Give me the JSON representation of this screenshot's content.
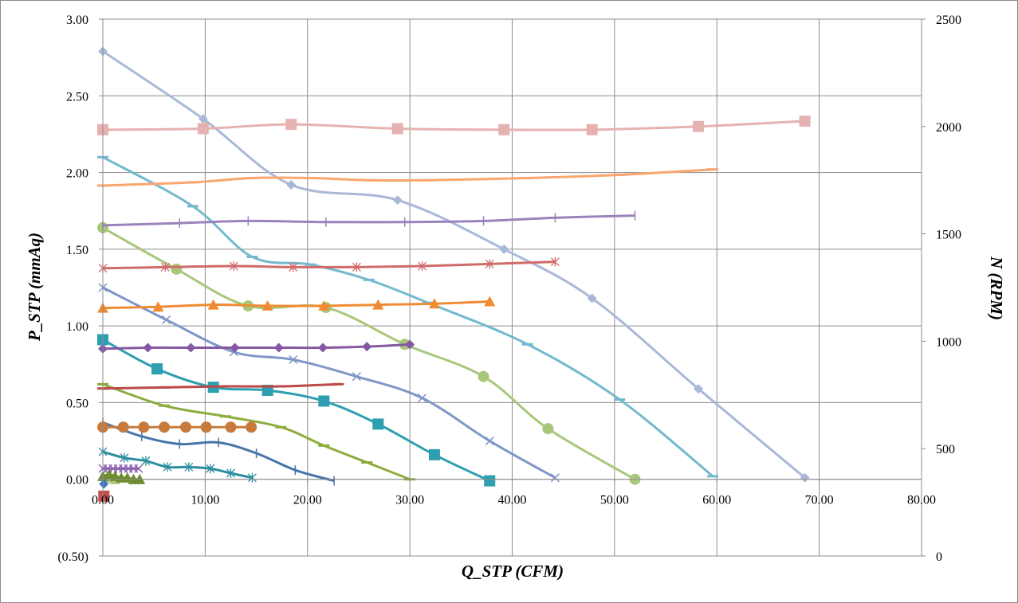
{
  "chart_data": {
    "type": "line",
    "xlabel": "Q_STP (CFM)",
    "ylabel": "P_STP (mmAq)",
    "y2label": "N (RPM)",
    "xlim": [
      0,
      80
    ],
    "ylim": [
      -0.5,
      3.0
    ],
    "y2lim": [
      0,
      2500
    ],
    "grid": true,
    "x_ticks": [
      "0.00",
      "10.00",
      "20.00",
      "30.00",
      "40.00",
      "50.00",
      "60.00",
      "70.00",
      "80.00"
    ],
    "x_tick_values": [
      0,
      10,
      20,
      30,
      40,
      50,
      60,
      70,
      80
    ],
    "y_ticks": [
      "(0.50)",
      "0.00",
      "0.50",
      "1.00",
      "1.50",
      "2.00",
      "2.50",
      "3.00"
    ],
    "y_tick_values": [
      -0.5,
      0,
      0.5,
      1.0,
      1.5,
      2.0,
      2.5,
      3.0
    ],
    "y2_ticks": [
      "0",
      "500",
      "1000",
      "1500",
      "2000",
      "2500"
    ],
    "y2_tick_values": [
      0,
      500,
      1000,
      1500,
      2000,
      2500
    ],
    "negative_tick_color": "#ff0000",
    "series": [
      {
        "axis": "y",
        "color": "#aab8d8",
        "marker": "diamond",
        "x": [
          0,
          9.8,
          18.4,
          28.8,
          39.2,
          47.8,
          58.2,
          68.6
        ],
        "y": [
          2.79,
          2.35,
          1.92,
          1.82,
          1.5,
          1.18,
          0.59,
          0.01
        ]
      },
      {
        "axis": "y",
        "color": "#74b9cf",
        "marker": "dash",
        "x": [
          0,
          8.8,
          14.6,
          20.3,
          26.0,
          31.8,
          41.5,
          50.5,
          59.6
        ],
        "y": [
          2.1,
          1.78,
          1.45,
          1.4,
          1.3,
          1.15,
          0.88,
          0.52,
          0.02
        ]
      },
      {
        "axis": "y",
        "color": "#a8c77a",
        "marker": "circle",
        "x": [
          0,
          7.2,
          14.2,
          21.8,
          29.5,
          37.2,
          43.5,
          52.0
        ],
        "y": [
          1.64,
          1.37,
          1.13,
          1.12,
          0.88,
          0.67,
          0.33,
          0.0
        ]
      },
      {
        "axis": "y",
        "color": "#7f96c7",
        "marker": "x",
        "x": [
          0,
          6.2,
          12.8,
          18.6,
          24.8,
          31.2,
          37.8,
          44.2
        ],
        "y": [
          1.25,
          1.04,
          0.83,
          0.78,
          0.67,
          0.53,
          0.25,
          0.01
        ]
      },
      {
        "axis": "y",
        "color": "#2e9fb0",
        "marker": "square",
        "x": [
          0,
          5.3,
          10.8,
          16.1,
          21.6,
          26.9,
          32.4,
          37.8
        ],
        "y": [
          0.91,
          0.72,
          0.6,
          0.58,
          0.51,
          0.36,
          0.16,
          -0.01
        ]
      },
      {
        "axis": "y",
        "color": "#8cac3e",
        "marker": "dash",
        "x": [
          0,
          6.0,
          12.0,
          17.4,
          21.6,
          25.8,
          30.0
        ],
        "y": [
          0.62,
          0.48,
          0.41,
          0.34,
          0.22,
          0.11,
          0.0
        ]
      },
      {
        "axis": "y",
        "color": "#4775aa",
        "marker": "plus",
        "x": [
          0,
          3.8,
          7.5,
          11.3,
          15.0,
          18.8,
          22.6
        ],
        "y": [
          0.37,
          0.28,
          0.23,
          0.24,
          0.17,
          0.06,
          -0.01
        ]
      },
      {
        "axis": "y",
        "color": "#2c8d9f",
        "marker": "star",
        "x": [
          0,
          2.1,
          4.2,
          6.3,
          8.4,
          10.5,
          12.5,
          14.6
        ],
        "y": [
          0.18,
          0.14,
          0.12,
          0.08,
          0.08,
          0.07,
          0.04,
          0.01
        ]
      },
      {
        "axis": "y",
        "color": "#8b62b0",
        "marker": "x",
        "x": [
          0,
          0.5,
          1.0,
          1.5,
          2.0,
          2.5,
          3.0,
          3.5
        ],
        "y": [
          0.07,
          0.07,
          0.07,
          0.07,
          0.07,
          0.07,
          0.07,
          0.07
        ]
      },
      {
        "axis": "y",
        "color": "#aac57e",
        "marker": "triangle",
        "x": [
          0.5,
          1.2
        ],
        "y": [
          0.01,
          0.0
        ]
      },
      {
        "axis": "y",
        "color": "#6f8c2e",
        "marker": "triangle",
        "x": [
          0,
          0.6,
          1.2,
          1.8,
          2.4,
          3.0,
          3.6
        ],
        "y": [
          0.02,
          0.03,
          0.02,
          0.01,
          0.01,
          0.0,
          0.0
        ]
      },
      {
        "axis": "y",
        "color": "#4472c4",
        "marker": "diamond",
        "x": [
          0.1
        ],
        "y": [
          -0.03
        ]
      },
      {
        "axis": "y",
        "color": "#c0504d",
        "marker": "square",
        "x": [
          0.1
        ],
        "y": [
          -0.11
        ]
      },
      {
        "axis": "y2",
        "color": "#e6b2b1",
        "marker": "square",
        "x": [
          0,
          9.8,
          18.4,
          28.8,
          39.2,
          47.8,
          58.2,
          68.6
        ],
        "y": [
          1985,
          1990,
          2010,
          1990,
          1985,
          1985,
          2000,
          2025
        ]
      },
      {
        "axis": "y2",
        "color": "#f9a66f",
        "marker": "dash",
        "x": [
          0,
          8.8,
          14.6,
          20.3,
          26.0,
          31.8,
          41.5,
          50.5,
          59.6
        ],
        "y": [
          1725,
          1740,
          1760,
          1760,
          1750,
          1750,
          1760,
          1775,
          1800
        ]
      },
      {
        "axis": "y2",
        "color": "#9b83bb",
        "marker": "plus",
        "x": [
          0,
          7.5,
          14.2,
          21.8,
          29.5,
          37.2,
          44.2,
          52.0
        ],
        "y": [
          1540,
          1550,
          1560,
          1555,
          1555,
          1560,
          1575,
          1585
        ]
      },
      {
        "axis": "y2",
        "color": "#cf6b69",
        "marker": "star",
        "x": [
          0,
          6.1,
          12.8,
          18.6,
          24.8,
          31.2,
          37.8,
          44.2
        ],
        "y": [
          1340,
          1345,
          1350,
          1345,
          1345,
          1350,
          1360,
          1370
        ]
      },
      {
        "axis": "y2",
        "color": "#ef8c33",
        "marker": "triangle",
        "x": [
          0,
          5.4,
          10.8,
          16.1,
          21.6,
          26.9,
          32.4,
          37.8
        ],
        "y": [
          1155,
          1160,
          1170,
          1165,
          1165,
          1170,
          1175,
          1185
        ]
      },
      {
        "axis": "y2",
        "color": "#8658a3",
        "marker": "diamond",
        "x": [
          0,
          4.4,
          8.6,
          12.9,
          17.2,
          21.5,
          25.8,
          30.0
        ],
        "y": [
          965,
          970,
          970,
          970,
          970,
          970,
          975,
          985
        ]
      },
      {
        "axis": "y2",
        "color": "#bb4a48",
        "marker": "dash",
        "x": [
          0,
          6.0,
          12.0,
          17.4,
          23.0
        ],
        "y": [
          780,
          785,
          790,
          790,
          800
        ]
      },
      {
        "axis": "y2",
        "color": "#c77a3c",
        "marker": "circle",
        "x": [
          0,
          2.0,
          4.0,
          6.0,
          8.1,
          10.1,
          12.5,
          14.5
        ],
        "y": [
          600,
          600,
          600,
          600,
          600,
          600,
          600,
          600
        ]
      }
    ]
  }
}
